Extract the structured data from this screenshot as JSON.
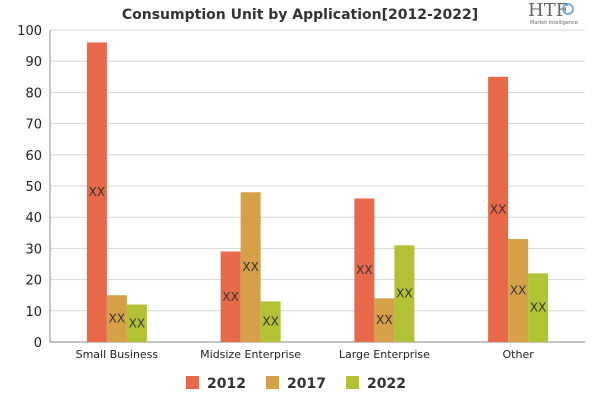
{
  "chart_data": {
    "type": "bar",
    "title": "Consumption Unit by  Application[2012-2022]",
    "categories": [
      "Small Business",
      "Midsize Enterprise",
      "Large Enterprise",
      "Other"
    ],
    "series": [
      {
        "name": "2012",
        "values": [
          96,
          29,
          46,
          85
        ],
        "labels": [
          "XX",
          "XX",
          "XX",
          "XX"
        ]
      },
      {
        "name": "2017",
        "values": [
          15,
          48,
          14,
          33
        ],
        "labels": [
          "XX",
          "XX",
          "XX",
          "XX"
        ]
      },
      {
        "name": "2022",
        "values": [
          12,
          13,
          31,
          22
        ],
        "labels": [
          "XX",
          "XX",
          "XX",
          "XX"
        ]
      }
    ],
    "ylim": [
      0,
      100
    ],
    "yticks": [
      0,
      10,
      20,
      30,
      40,
      50,
      60,
      70,
      80,
      90,
      100
    ],
    "xlabel": "",
    "ylabel": "",
    "grid": true,
    "legend_position": "bottom-center"
  },
  "colors": {
    "2012": "#E8694A",
    "2017": "#D5A048",
    "2022": "#B2C234",
    "grid": "#D6D6D6",
    "axis": "#888888"
  },
  "logo": {
    "text": "HTF",
    "subtext": "Market Intelligence"
  }
}
